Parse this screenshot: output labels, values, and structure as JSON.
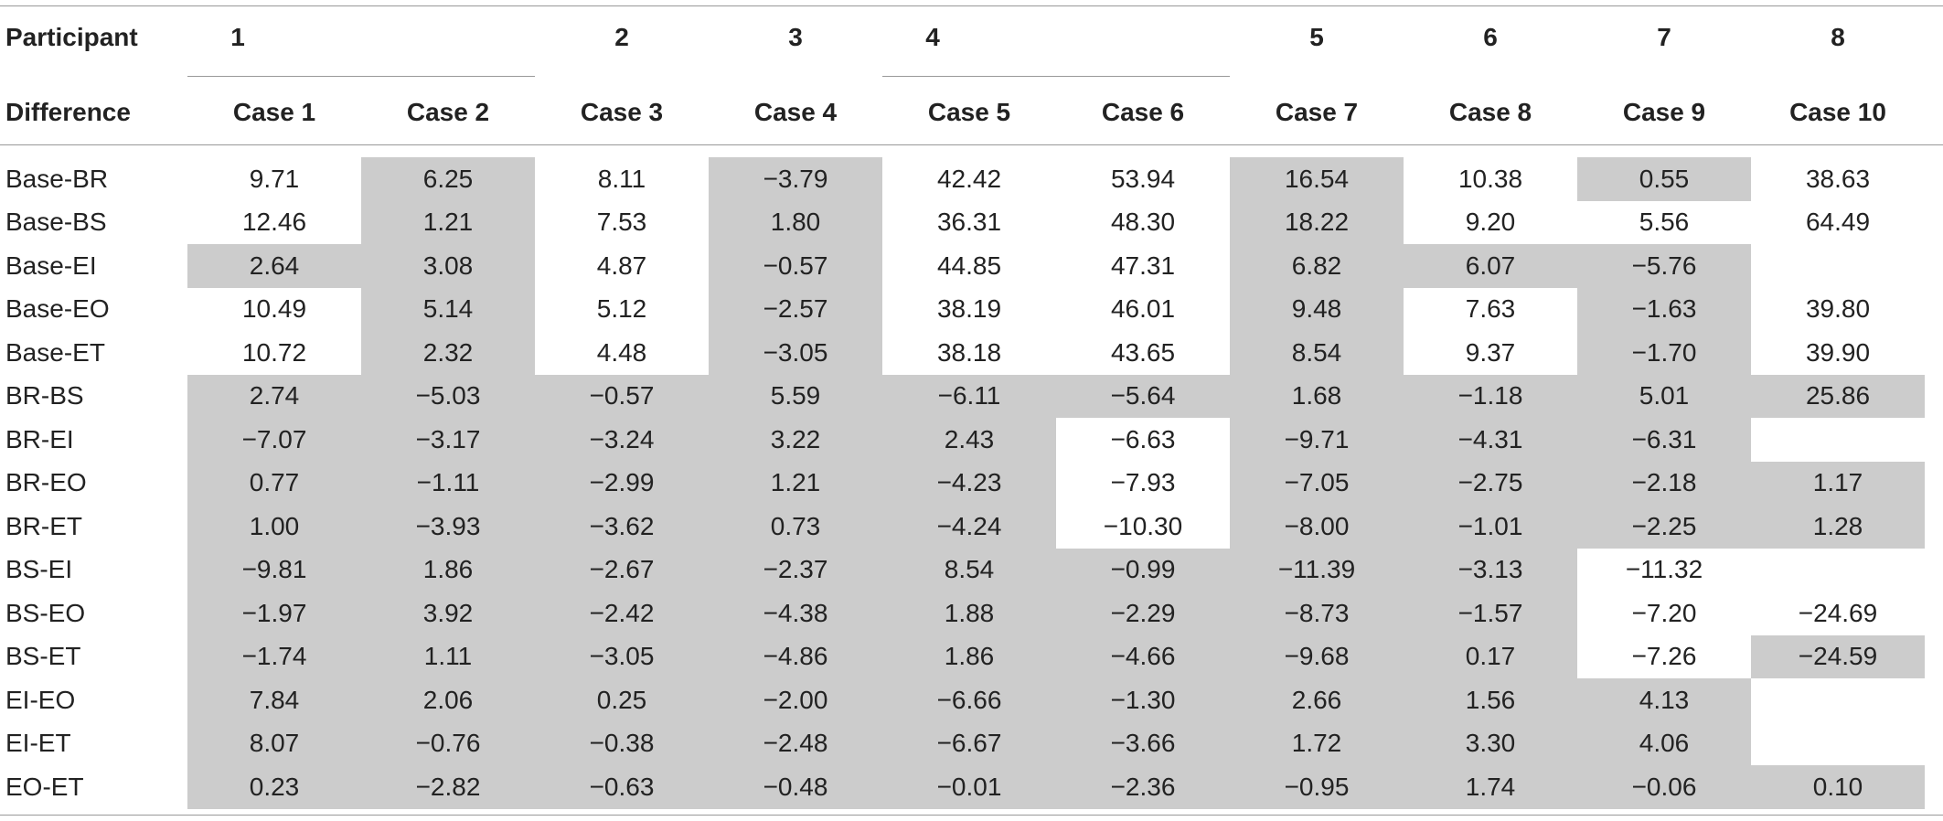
{
  "table": {
    "header_row1_label": "Participant",
    "header_row2_label": "Difference",
    "participants": [
      {
        "label": "1",
        "span": [
          0,
          1
        ]
      },
      {
        "label": "2",
        "span": [
          2,
          2
        ]
      },
      {
        "label": "3",
        "span": [
          3,
          3
        ]
      },
      {
        "label": "4",
        "span": [
          4,
          5
        ]
      },
      {
        "label": "5",
        "span": [
          6,
          6
        ]
      },
      {
        "label": "6",
        "span": [
          7,
          7
        ]
      },
      {
        "label": "7",
        "span": [
          8,
          8
        ]
      },
      {
        "label": "8",
        "span": [
          9,
          9
        ]
      }
    ],
    "cases": [
      "Case 1",
      "Case 2",
      "Case 3",
      "Case 4",
      "Case 5",
      "Case 6",
      "Case 7",
      "Case 8",
      "Case 9",
      "Case 10"
    ],
    "rows": [
      {
        "label": "Base-BR",
        "values": [
          "9.71",
          "6.25",
          "8.11",
          "−3.79",
          "42.42",
          "53.94",
          "16.54",
          "10.38",
          "0.55",
          "38.63"
        ],
        "shaded": [
          false,
          true,
          false,
          true,
          false,
          false,
          true,
          false,
          true,
          false
        ]
      },
      {
        "label": "Base-BS",
        "values": [
          "12.46",
          "1.21",
          "7.53",
          "1.80",
          "36.31",
          "48.30",
          "18.22",
          "9.20",
          "5.56",
          "64.49"
        ],
        "shaded": [
          false,
          true,
          false,
          true,
          false,
          false,
          true,
          false,
          false,
          false
        ]
      },
      {
        "label": "Base-EI",
        "values": [
          "2.64",
          "3.08",
          "4.87",
          "−0.57",
          "44.85",
          "47.31",
          "6.82",
          "6.07",
          "−5.76",
          ""
        ],
        "shaded": [
          true,
          true,
          false,
          true,
          false,
          false,
          true,
          true,
          true,
          false
        ]
      },
      {
        "label": "Base-EO",
        "values": [
          "10.49",
          "5.14",
          "5.12",
          "−2.57",
          "38.19",
          "46.01",
          "9.48",
          "7.63",
          "−1.63",
          "39.80"
        ],
        "shaded": [
          false,
          true,
          false,
          true,
          false,
          false,
          true,
          false,
          true,
          false
        ]
      },
      {
        "label": "Base-ET",
        "values": [
          "10.72",
          "2.32",
          "4.48",
          "−3.05",
          "38.18",
          "43.65",
          "8.54",
          "9.37",
          "−1.70",
          "39.90"
        ],
        "shaded": [
          false,
          true,
          false,
          true,
          false,
          false,
          true,
          false,
          true,
          false
        ]
      },
      {
        "label": "BR-BS",
        "values": [
          "2.74",
          "−5.03",
          "−0.57",
          "5.59",
          "−6.11",
          "−5.64",
          "1.68",
          "−1.18",
          "5.01",
          "25.86"
        ],
        "shaded": [
          true,
          true,
          true,
          true,
          true,
          true,
          true,
          true,
          true,
          true
        ]
      },
      {
        "label": "BR-EI",
        "values": [
          "−7.07",
          "−3.17",
          "−3.24",
          "3.22",
          "2.43",
          "−6.63",
          "−9.71",
          "−4.31",
          "−6.31",
          ""
        ],
        "shaded": [
          true,
          true,
          true,
          true,
          true,
          false,
          true,
          true,
          true,
          false
        ]
      },
      {
        "label": "BR-EO",
        "values": [
          "0.77",
          "−1.11",
          "−2.99",
          "1.21",
          "−4.23",
          "−7.93",
          "−7.05",
          "−2.75",
          "−2.18",
          "1.17"
        ],
        "shaded": [
          true,
          true,
          true,
          true,
          true,
          false,
          true,
          true,
          true,
          true
        ]
      },
      {
        "label": "BR-ET",
        "values": [
          "1.00",
          "−3.93",
          "−3.62",
          "0.73",
          "−4.24",
          "−10.30",
          "−8.00",
          "−1.01",
          "−2.25",
          "1.28"
        ],
        "shaded": [
          true,
          true,
          true,
          true,
          true,
          false,
          true,
          true,
          true,
          true
        ]
      },
      {
        "label": "BS-EI",
        "values": [
          "−9.81",
          "1.86",
          "−2.67",
          "−2.37",
          "8.54",
          "−0.99",
          "−11.39",
          "−3.13",
          "−11.32",
          ""
        ],
        "shaded": [
          true,
          true,
          true,
          true,
          true,
          true,
          true,
          true,
          false,
          false
        ]
      },
      {
        "label": "BS-EO",
        "values": [
          "−1.97",
          "3.92",
          "−2.42",
          "−4.38",
          "1.88",
          "−2.29",
          "−8.73",
          "−1.57",
          "−7.20",
          "−24.69"
        ],
        "shaded": [
          true,
          true,
          true,
          true,
          true,
          true,
          true,
          true,
          false,
          false
        ]
      },
      {
        "label": "BS-ET",
        "values": [
          "−1.74",
          "1.11",
          "−3.05",
          "−4.86",
          "1.86",
          "−4.66",
          "−9.68",
          "0.17",
          "−7.26",
          "−24.59"
        ],
        "shaded": [
          true,
          true,
          true,
          true,
          true,
          true,
          true,
          true,
          false,
          true
        ]
      },
      {
        "label": "EI-EO",
        "values": [
          "7.84",
          "2.06",
          "0.25",
          "−2.00",
          "−6.66",
          "−1.30",
          "2.66",
          "1.56",
          "4.13",
          ""
        ],
        "shaded": [
          true,
          true,
          true,
          true,
          true,
          true,
          true,
          true,
          true,
          false
        ]
      },
      {
        "label": "EI-ET",
        "values": [
          "8.07",
          "−0.76",
          "−0.38",
          "−2.48",
          "−6.67",
          "−3.66",
          "1.72",
          "3.30",
          "4.06",
          ""
        ],
        "shaded": [
          true,
          true,
          true,
          true,
          true,
          true,
          true,
          true,
          true,
          false
        ]
      },
      {
        "label": "EO-ET",
        "values": [
          "0.23",
          "−2.82",
          "−0.63",
          "−0.48",
          "−0.01",
          "−2.36",
          "−0.95",
          "1.74",
          "−0.06",
          "0.10"
        ],
        "shaded": [
          true,
          true,
          true,
          true,
          true,
          true,
          true,
          true,
          true,
          true
        ]
      }
    ],
    "colors": {
      "shade": "#cccccc",
      "rule": "#999999",
      "text": "#222222"
    }
  }
}
